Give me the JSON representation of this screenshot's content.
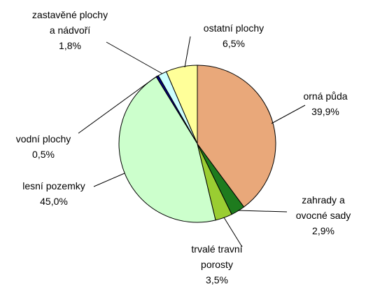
{
  "chart_data": {
    "type": "pie",
    "categories": [
      "orná půda",
      "zahrady a ovocné sady",
      "trvalé travní porosty",
      "lesní pozemky",
      "vodní plochy",
      "zastavěné plochy a nádvoří",
      "ostatní plochy"
    ],
    "values": [
      39.9,
      2.9,
      3.5,
      45.0,
      0.5,
      1.8,
      6.5
    ],
    "value_labels": [
      "39,9%",
      "2,9%",
      "3,5%",
      "45,0%",
      "0,5%",
      "1,8%",
      "6,5%"
    ],
    "colors": [
      "#E9A87A",
      "#1E7B1E",
      "#9ACD32",
      "#CCFFCC",
      "#000080",
      "#CCFFFF",
      "#FFFF99"
    ]
  }
}
